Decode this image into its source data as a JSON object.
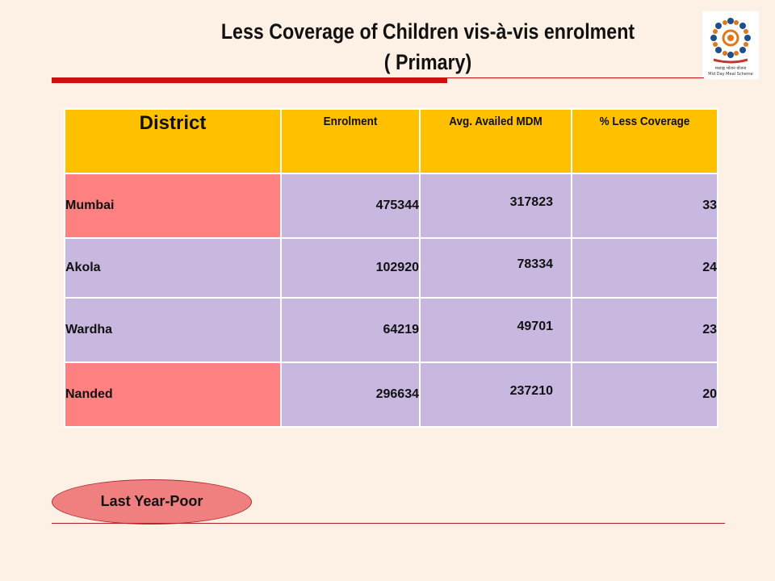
{
  "slide": {
    "title_line1": "Less Coverage of Children vis-à-vis enrolment",
    "title_line2": "( Primary)"
  },
  "logo": {
    "icon": "mid-day-meal-logo",
    "caption_line1": "मध्याह्न भोजन योजना",
    "caption_line2": "Mid Day Meal Scheme"
  },
  "table": {
    "headers": [
      "District",
      "Enrolment",
      "Avg. Availed MDM",
      "% Less Coverage"
    ],
    "rows": [
      {
        "district": "Mumbai",
        "enrolment": "475344",
        "avg_availed_mdm": "317823",
        "less_coverage": "33",
        "highlight": true
      },
      {
        "district": "Akola",
        "enrolment": "102920",
        "avg_availed_mdm": "78334",
        "less_coverage": "24",
        "highlight": false
      },
      {
        "district": "Wardha",
        "enrolment": "64219",
        "avg_availed_mdm": "49701",
        "less_coverage": "23",
        "highlight": false
      },
      {
        "district": "Nanded",
        "enrolment": "296634",
        "avg_availed_mdm": "237210",
        "less_coverage": "20",
        "highlight": true
      }
    ]
  },
  "status_pill": {
    "label": "Last Year-Poor"
  },
  "colors": {
    "background": "#fdf0e4",
    "header": "#ffc000",
    "highlight_row": "#ff8080",
    "normal_cell": "#c8b8e0",
    "accent_red": "#cc1111"
  }
}
